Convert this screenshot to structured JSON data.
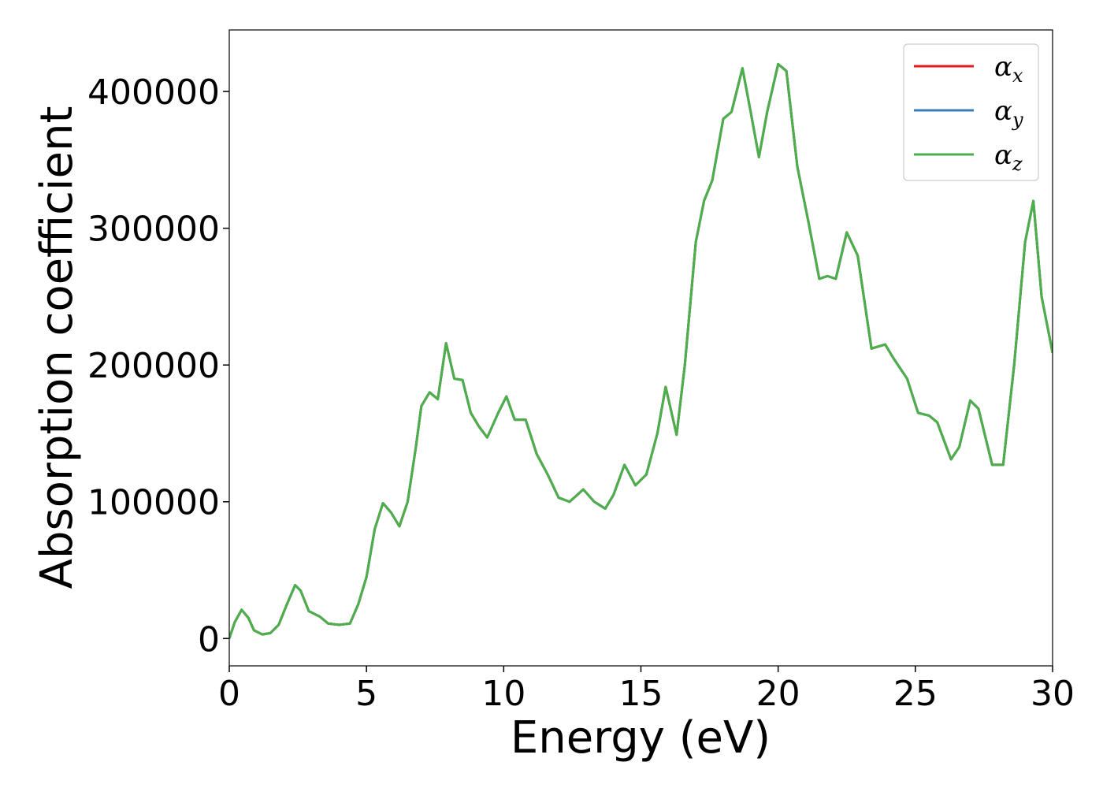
{
  "chart_data": {
    "type": "line",
    "xlabel": "Energy (eV)",
    "ylabel": "Absorption coefficient",
    "x": [
      0,
      0.2,
      0.45,
      0.7,
      0.9,
      1.2,
      1.5,
      1.8,
      2.1,
      2.4,
      2.6,
      2.9,
      3.3,
      3.6,
      4.0,
      4.4,
      4.7,
      5.0,
      5.3,
      5.6,
      5.9,
      6.2,
      6.5,
      6.8,
      7.0,
      7.3,
      7.6,
      7.9,
      8.2,
      8.5,
      8.8,
      9.1,
      9.4,
      9.8,
      10.1,
      10.4,
      10.8,
      11.2,
      11.6,
      12.0,
      12.4,
      12.9,
      13.3,
      13.7,
      14.0,
      14.4,
      14.8,
      15.2,
      15.6,
      15.9,
      16.3,
      16.6,
      17.0,
      17.3,
      17.6,
      18.0,
      18.3,
      18.7,
      19.0,
      19.3,
      19.6,
      20.0,
      20.3,
      20.7,
      21.1,
      21.5,
      21.8,
      22.1,
      22.5,
      22.9,
      23.4,
      23.9,
      24.2,
      24.7,
      25.1,
      25.5,
      25.8,
      26.3,
      26.6,
      27.0,
      27.3,
      27.8,
      28.2,
      28.6,
      29.0,
      29.3,
      29.6,
      30.0
    ],
    "series": [
      {
        "name": "αx",
        "color": "#e41a1c",
        "values": [
          0,
          12000,
          21000,
          15000,
          6000,
          3000,
          4000,
          10000,
          25000,
          39000,
          35000,
          20000,
          16000,
          11000,
          10000,
          11000,
          25000,
          45000,
          80000,
          99000,
          92000,
          82000,
          100000,
          140000,
          170000,
          180000,
          175000,
          216000,
          190000,
          189000,
          165000,
          155000,
          147000,
          165000,
          177000,
          160000,
          160000,
          135000,
          120000,
          103000,
          100000,
          109000,
          100000,
          95000,
          105000,
          127000,
          112000,
          120000,
          150000,
          184000,
          149000,
          200000,
          290000,
          320000,
          335000,
          380000,
          385000,
          417000,
          385000,
          352000,
          385000,
          420000,
          415000,
          345000,
          305000,
          263000,
          265000,
          263000,
          297000,
          280000,
          212000,
          215000,
          205000,
          190000,
          165000,
          163000,
          158000,
          131000,
          140000,
          174000,
          168000,
          127000,
          127000,
          200000,
          290000,
          320000,
          250000,
          209000
        ]
      },
      {
        "name": "αy",
        "color": "#377eb8",
        "values": [
          0,
          12000,
          21000,
          15000,
          6000,
          3000,
          4000,
          10000,
          25000,
          39000,
          35000,
          20000,
          16000,
          11000,
          10000,
          11000,
          25000,
          45000,
          80000,
          99000,
          92000,
          82000,
          100000,
          140000,
          170000,
          180000,
          175000,
          216000,
          190000,
          189000,
          165000,
          155000,
          147000,
          165000,
          177000,
          160000,
          160000,
          135000,
          120000,
          103000,
          100000,
          109000,
          100000,
          95000,
          105000,
          127000,
          112000,
          120000,
          150000,
          184000,
          149000,
          200000,
          290000,
          320000,
          335000,
          380000,
          385000,
          417000,
          385000,
          352000,
          385000,
          420000,
          415000,
          345000,
          305000,
          263000,
          265000,
          263000,
          297000,
          280000,
          212000,
          215000,
          205000,
          190000,
          165000,
          163000,
          158000,
          131000,
          140000,
          174000,
          168000,
          127000,
          127000,
          200000,
          290000,
          320000,
          250000,
          209000
        ]
      },
      {
        "name": "αz",
        "color": "#4daf4a",
        "values": [
          0,
          12000,
          21000,
          15000,
          6000,
          3000,
          4000,
          10000,
          25000,
          39000,
          35000,
          20000,
          16000,
          11000,
          10000,
          11000,
          25000,
          45000,
          80000,
          99000,
          92000,
          82000,
          100000,
          140000,
          170000,
          180000,
          175000,
          216000,
          190000,
          189000,
          165000,
          155000,
          147000,
          165000,
          177000,
          160000,
          160000,
          135000,
          120000,
          103000,
          100000,
          109000,
          100000,
          95000,
          105000,
          127000,
          112000,
          120000,
          150000,
          184000,
          149000,
          200000,
          290000,
          320000,
          335000,
          380000,
          385000,
          417000,
          385000,
          352000,
          385000,
          420000,
          415000,
          345000,
          305000,
          263000,
          265000,
          263000,
          297000,
          280000,
          212000,
          215000,
          205000,
          190000,
          165000,
          163000,
          158000,
          131000,
          140000,
          174000,
          168000,
          127000,
          127000,
          200000,
          290000,
          320000,
          250000,
          209000
        ]
      }
    ],
    "xlim": [
      0,
      30
    ],
    "xticks": [
      0,
      5,
      10,
      15,
      20,
      25,
      30
    ],
    "ylim": [
      -20000,
      445000
    ],
    "yticks": [
      0,
      100000,
      200000,
      300000,
      400000
    ],
    "grid": false,
    "legend": "upper right"
  }
}
